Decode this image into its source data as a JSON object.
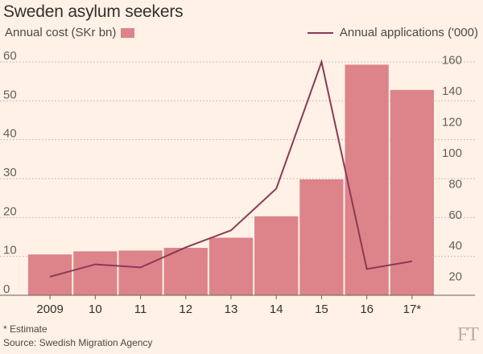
{
  "title": "Sweden asylum seekers",
  "legend": {
    "bar_label": "Annual cost (SKr bn)",
    "line_label": "Annual applications ('000)"
  },
  "footnote": "* Estimate",
  "source": "Source: Swedish Migration Agency",
  "logo": "FT",
  "colors": {
    "bar": "#dd838a",
    "line": "#8a3a56",
    "grid": "#c9c0b8",
    "background": "#fff1e5"
  },
  "chart_data": {
    "type": "bar+line",
    "title": "Sweden asylum seekers",
    "categories": [
      "2009",
      "10",
      "11",
      "12",
      "13",
      "14",
      "15",
      "16",
      "17*"
    ],
    "series": [
      {
        "name": "Annual cost (SKr bn)",
        "type": "bar",
        "axis": "left",
        "values": [
          10.5,
          11.3,
          11.5,
          12.2,
          14.8,
          20.3,
          29.8,
          59.3,
          52.8
        ]
      },
      {
        "name": "Annual applications ('000)",
        "type": "line",
        "axis": "right",
        "values": [
          24,
          32,
          30,
          43,
          54,
          81,
          163,
          29,
          34
        ]
      }
    ],
    "left_axis": {
      "ticks": [
        0,
        10,
        20,
        30,
        40,
        50,
        60
      ],
      "ylim": [
        0,
        60
      ]
    },
    "right_axis": {
      "ticks": [
        20,
        40,
        60,
        80,
        100,
        120,
        140,
        160
      ],
      "ylim": [
        12,
        164
      ]
    },
    "grid": "horizontal dashed",
    "legend_position": "top"
  }
}
